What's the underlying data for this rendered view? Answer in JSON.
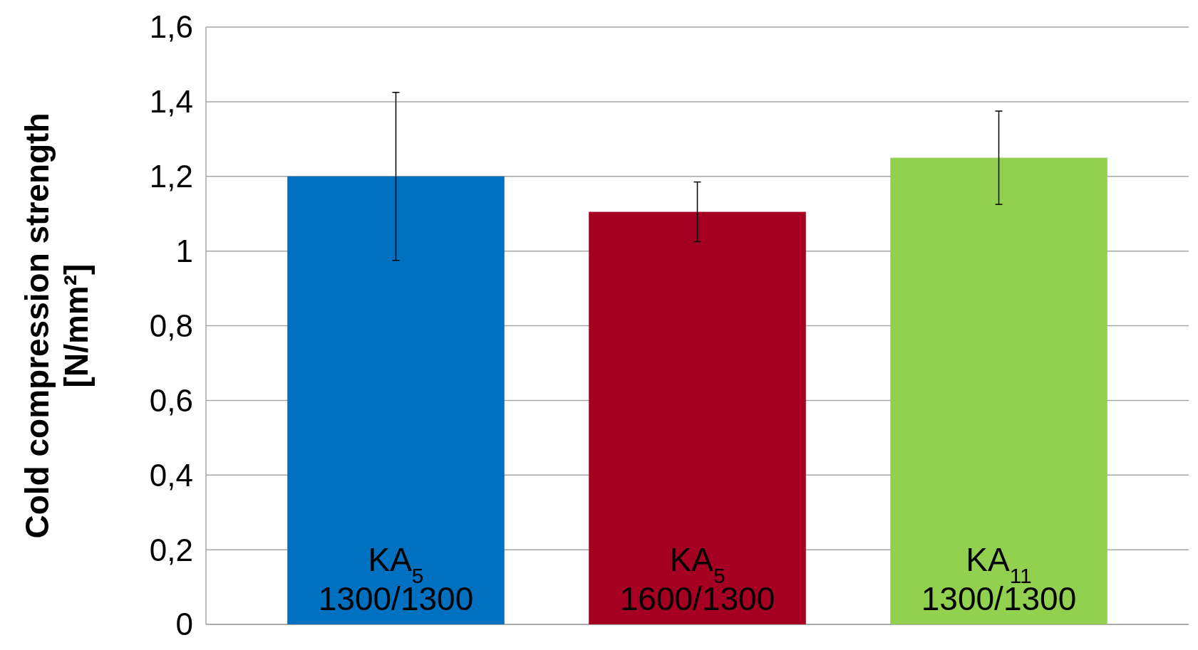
{
  "chart_data": {
    "type": "bar",
    "ylabel": "Cold compression strength\n[N/mm²]",
    "categories": [
      "KA$_{5}$\n1300/1300",
      "KA$_{5}$\n1600/1300",
      "KA$_{11}$\n1300/1300"
    ],
    "values": [
      1.2,
      1.105,
      1.25
    ],
    "colors": [
      "#0070c0",
      "#a50021",
      "#92d050"
    ],
    "errors": [
      0.225,
      0.08,
      0.125
    ],
    "ylim": [
      0,
      1.6
    ],
    "yticks": [
      {
        "value": 0,
        "label": "0"
      },
      {
        "value": 0.2,
        "label": "0,2"
      },
      {
        "value": 0.4,
        "label": "0,4"
      },
      {
        "value": 0.6,
        "label": "0,6"
      },
      {
        "value": 0.8,
        "label": "0,8"
      },
      {
        "value": 1,
        "label": "1"
      },
      {
        "value": 1.2,
        "label": "1,2"
      },
      {
        "value": 1.4,
        "label": "1,4"
      },
      {
        "value": 1.6,
        "label": "1,6"
      }
    ],
    "grid": "y"
  }
}
